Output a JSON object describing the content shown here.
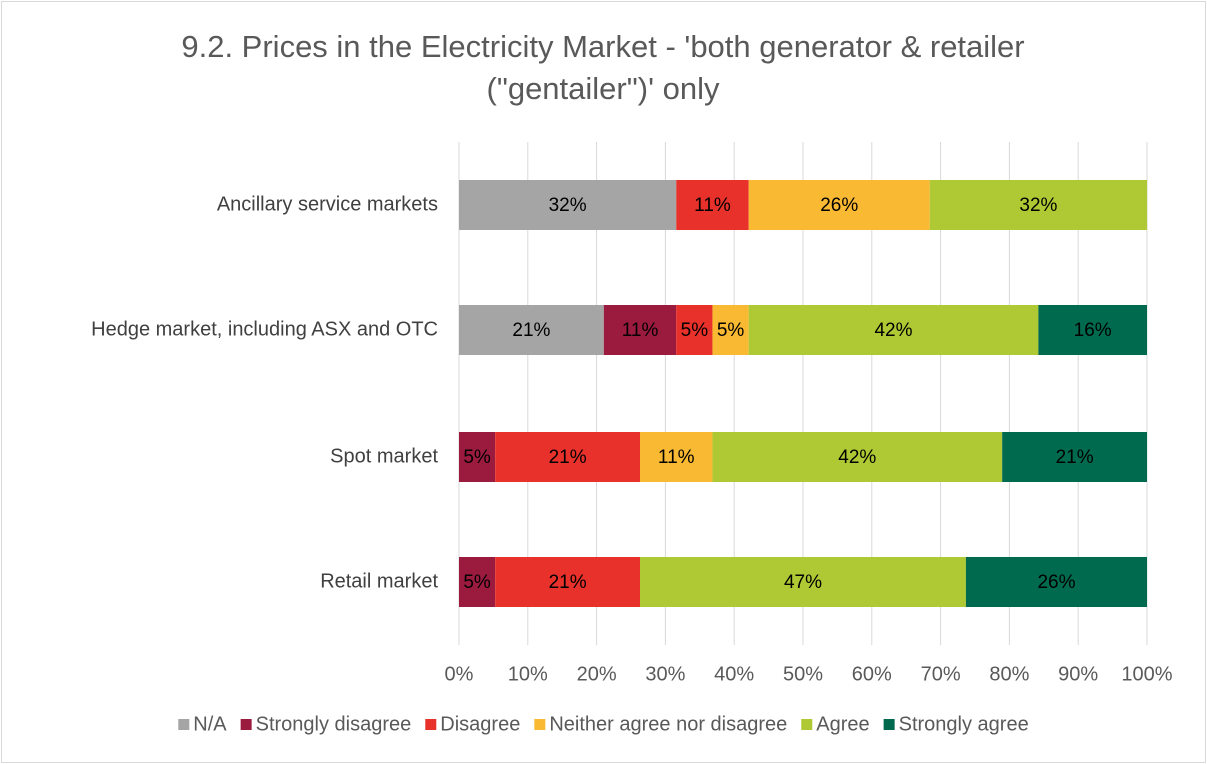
{
  "chart_data": {
    "type": "stacked-bar-horizontal",
    "title": "9.2. Prices in the Electricity Market - 'both generator & retailer (\"gentailer\")' only",
    "categories": [
      "Ancillary service markets",
      "Hedge market, including ASX and OTC",
      "Spot market",
      "Retail market"
    ],
    "series": [
      {
        "name": "N/A",
        "color": "#a5a5a5",
        "values": [
          31.58,
          21.05,
          null,
          null
        ],
        "value_labels": [
          "32%",
          "21%",
          null,
          null
        ]
      },
      {
        "name": "Strongly disagree",
        "color": "#9b1b3f",
        "values": [
          null,
          10.53,
          5.26,
          5.26
        ],
        "value_labels": [
          null,
          "11%",
          "5%",
          "5%"
        ]
      },
      {
        "name": "Disagree",
        "color": "#e8312a",
        "values": [
          10.53,
          5.26,
          21.05,
          21.05
        ],
        "value_labels": [
          "11%",
          "5%",
          "21%",
          "21%"
        ]
      },
      {
        "name": "Neither agree nor disagree",
        "color": "#f9b932",
        "values": [
          26.32,
          5.26,
          10.53,
          null
        ],
        "value_labels": [
          "26%",
          "5%",
          "11%",
          null
        ]
      },
      {
        "name": "Agree",
        "color": "#aec934",
        "values": [
          31.58,
          42.11,
          42.11,
          47.37
        ],
        "value_labels": [
          "32%",
          "42%",
          "42%",
          "47%"
        ]
      },
      {
        "name": "Strongly agree",
        "color": "#006a4e",
        "values": [
          null,
          15.79,
          21.05,
          26.32
        ],
        "value_labels": [
          null,
          "16%",
          "21%",
          "26%"
        ]
      }
    ],
    "xlim": [
      0,
      100
    ],
    "xticks": [
      {
        "value": 0,
        "label": "0%"
      },
      {
        "value": 10,
        "label": "10%"
      },
      {
        "value": 20,
        "label": "20%"
      },
      {
        "value": 30,
        "label": "30%"
      },
      {
        "value": 40,
        "label": "40%"
      },
      {
        "value": 50,
        "label": "50%"
      },
      {
        "value": 60,
        "label": "60%"
      },
      {
        "value": 70,
        "label": "70%"
      },
      {
        "value": 80,
        "label": "80%"
      },
      {
        "value": 90,
        "label": "90%"
      },
      {
        "value": 100,
        "label": "100%"
      }
    ],
    "grid": true,
    "legend": "bottom"
  }
}
